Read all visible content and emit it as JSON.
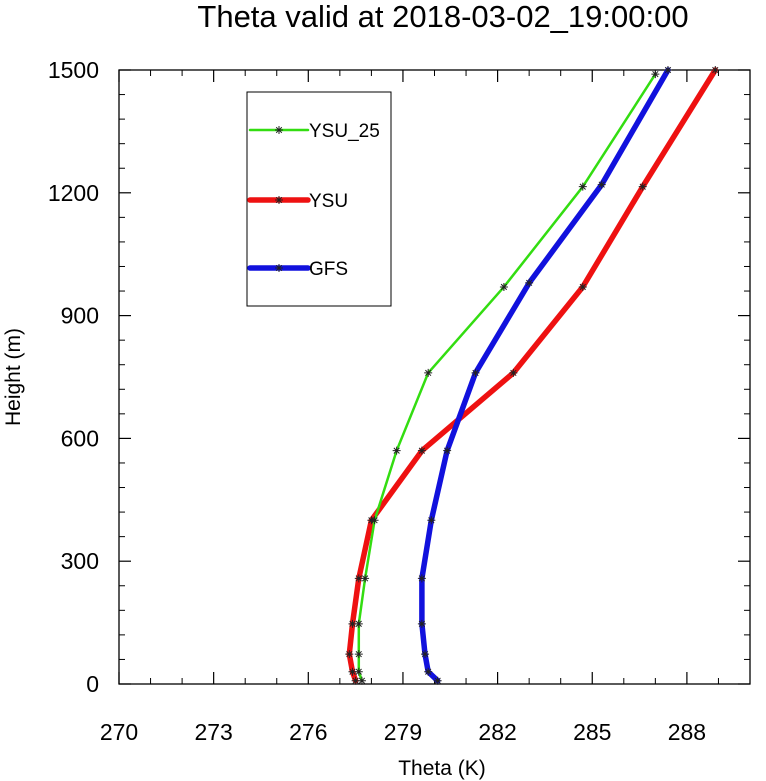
{
  "chart_data": {
    "type": "line",
    "title": "Theta valid at 2018-03-02_19:00:00",
    "xlabel": "Theta (K)",
    "ylabel": "Height (m)",
    "xlim": [
      270,
      290
    ],
    "ylim": [
      0,
      1500
    ],
    "xticks": [
      "270",
      "273",
      "276",
      "279",
      "282",
      "285",
      "288"
    ],
    "yticks": [
      "0",
      "300",
      "600",
      "900",
      "1200",
      "1500"
    ],
    "grid": false,
    "legend_position": "top-left",
    "series": [
      {
        "name": "YSU_25",
        "color": "#33dd11",
        "x": [
          277.7,
          277.6,
          277.6,
          277.6,
          277.8,
          278.1,
          278.8,
          279.8,
          282.2,
          284.7,
          287.0
        ],
        "y": [
          8,
          30,
          73,
          147,
          258,
          400,
          570,
          760,
          970,
          1215,
          1490
        ]
      },
      {
        "name": "YSU",
        "color": "#ee1111",
        "x": [
          277.5,
          277.4,
          277.3,
          277.4,
          277.6,
          278.0,
          279.6,
          282.5,
          284.7,
          286.6,
          288.9
        ],
        "y": [
          8,
          30,
          73,
          147,
          258,
          400,
          570,
          760,
          970,
          1215,
          1500
        ]
      },
      {
        "name": "GFS",
        "color": "#1111dd",
        "x": [
          280.1,
          279.8,
          279.7,
          279.6,
          279.6,
          279.9,
          280.4,
          281.3,
          283.0,
          285.3,
          287.4
        ],
        "y": [
          8,
          30,
          73,
          147,
          258,
          400,
          570,
          760,
          980,
          1220,
          1500
        ]
      }
    ]
  }
}
